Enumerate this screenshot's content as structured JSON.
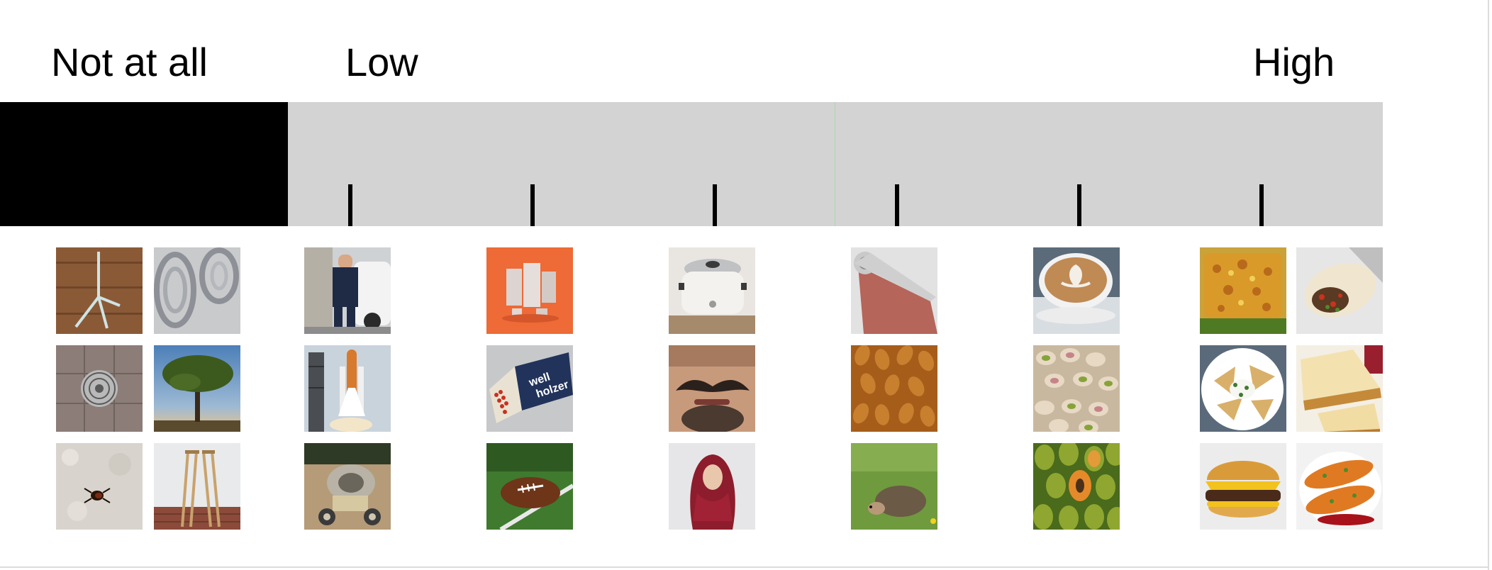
{
  "scale": {
    "label_none": "Not at all",
    "label_low": "Low",
    "label_high": "High"
  },
  "colors": {
    "bar": "#d3d3d3",
    "none_zone": "#000000",
    "tick": "#000000"
  },
  "items": {
    "not_at_all": [
      "metal stand",
      "wire coils",
      "floor drain",
      "tree",
      "tick insect",
      "crutches"
    ],
    "level_1": [
      "mechanic with truck",
      "space shuttle",
      "cement mixer"
    ],
    "level_2": [
      "metal cans",
      "matchbox",
      "football"
    ],
    "level_3": [
      "slow cooker",
      "mustache",
      "hijab"
    ],
    "level_4": [
      "sandpaper roll",
      "almonds",
      "hedgehog"
    ],
    "level_5": [
      "latte",
      "pistachios",
      "papayas"
    ],
    "level_6": [
      "lasagna",
      "burrito",
      "nachos",
      "cheesecake",
      "cheeseburger",
      "enchiladas"
    ]
  }
}
